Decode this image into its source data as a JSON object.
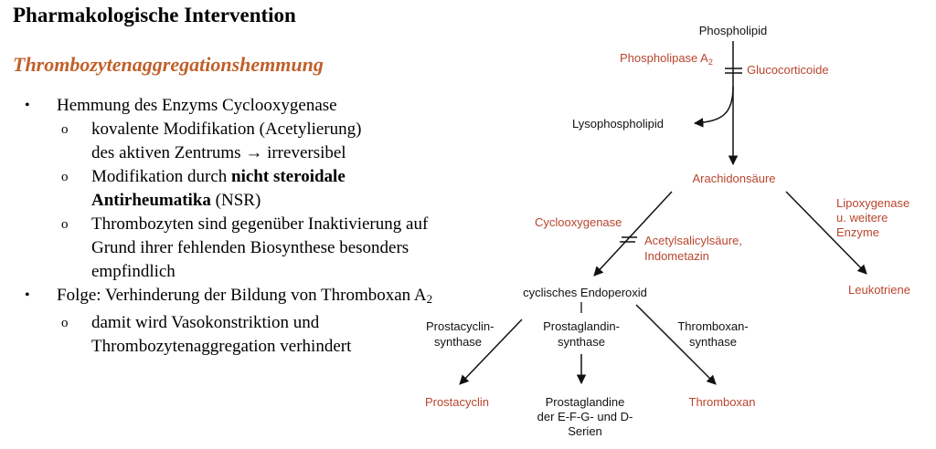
{
  "heading": "Pharmakologische Intervention",
  "subheading": "Thrombozytenaggregationshemmung",
  "bullets": {
    "b1": "Hemmung des Enzyms Cyclooxygenase",
    "b1_s1_a": "kovalente Modifikation (Acetylierung)",
    "b1_s1_b": "des aktiven Zentrums",
    "b1_s1_arrow": "→",
    "b1_s1_c": "irreversibel",
    "b1_s2_a": "Modifikation durch",
    "b1_s2_bold1": "nicht steroidale",
    "b1_s2_bold2": "Antirheumatika",
    "b1_s2_c": "(NSR)",
    "b1_s3": "Thrombozyten sind gegenüber Inaktivierung auf Grund ihrer fehlenden Biosynthese besonders empfindlich",
    "b2_a": "Folge: Verhinderung der Bildung von Thromboxan A",
    "b2_sub": "2",
    "b2_s1": "damit wird Vasokonstriktion und Thrombozytenaggregation verhindert",
    "bullet_char": "•",
    "sub_bullet_char": "o"
  },
  "diagram": {
    "phospholipid": "Phospholipid",
    "phospholipase": "Phospholipase A",
    "phospholipase_sub": "2",
    "glucocorticoide": "Glucocorticoide",
    "lysophospholipid": "Lysophospholipid",
    "arachidonsaeure": "Arachidonsäure",
    "lipoxygenase_1": "Lipoxygenase",
    "lipoxygenase_2": "u. weitere",
    "lipoxygenase_3": "Enzyme",
    "cyclooxygenase": "Cyclooxygenase",
    "asa_1": "Acetylsalicylsäure,",
    "asa_2": "Indometazin",
    "endoperoxid": "cyclisches Endoperoxid",
    "leukotriene": "Leukotriene",
    "prostacyclin_synthase_1": "Prostacyclin-",
    "prostacyclin_synthase_2": "synthase",
    "prostaglandin_synthase_1": "Prostaglandin-",
    "prostaglandin_synthase_2": "synthase",
    "thromboxan_synthase_1": "Thromboxan-",
    "thromboxan_synthase_2": "synthase",
    "prostacyclin": "Prostacyclin",
    "prostaglandine_1": "Prostaglandine",
    "prostaglandine_2": "der E-F-G- und D-",
    "prostaglandine_3": "Serien",
    "thromboxan": "Thromboxan"
  },
  "colors": {
    "accent": "#c0602b",
    "diagram_red": "#b8452e",
    "text": "#000000"
  }
}
